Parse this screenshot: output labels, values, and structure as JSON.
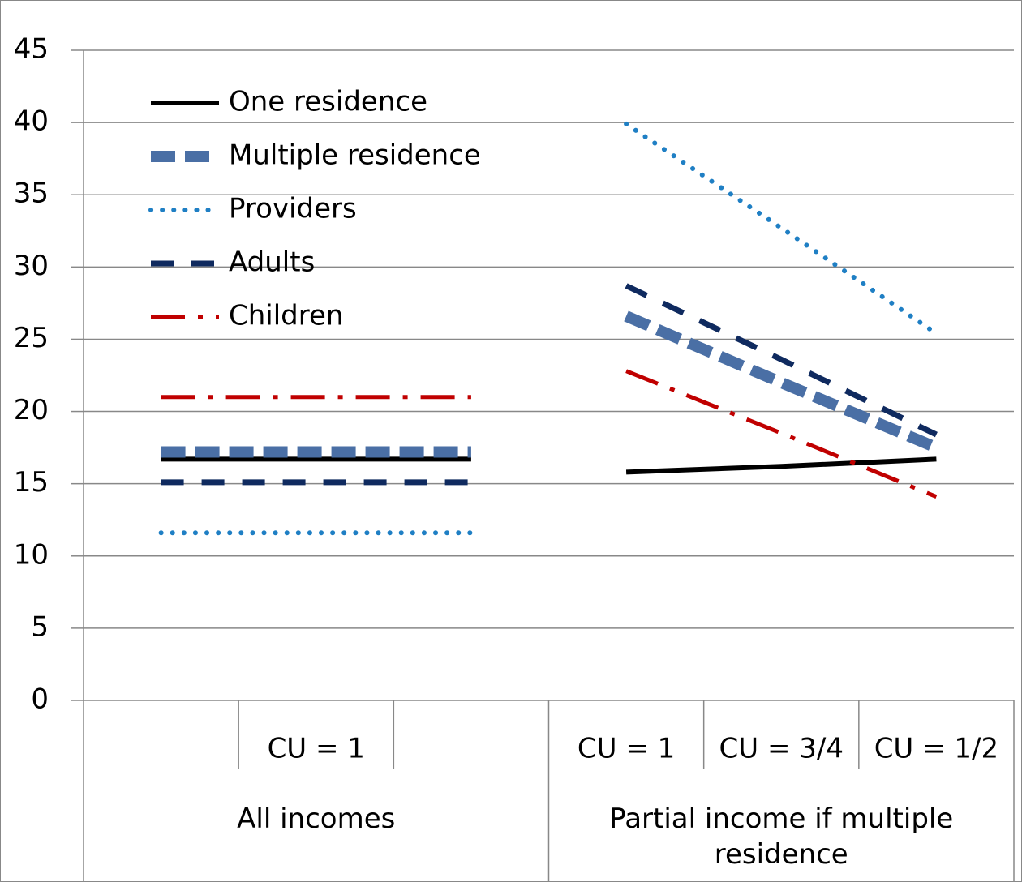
{
  "chart_data": {
    "type": "line",
    "groups": [
      {
        "name": "All incomes",
        "categories": [
          null,
          "CU = 1",
          null
        ]
      },
      {
        "name": "Partial income if multiple residence",
        "categories": [
          "CU = 1",
          "CU = 3/4",
          "CU = 1/2"
        ]
      }
    ],
    "series": [
      {
        "name": "One residence",
        "color": "#000000",
        "values": [
          [
            16.7,
            16.7,
            16.7
          ],
          [
            15.8,
            16.2,
            16.7
          ]
        ]
      },
      {
        "name": "Multiple residence",
        "color": "#4a6fa5",
        "values": [
          [
            17.2,
            17.2,
            17.2
          ],
          [
            26.6,
            22.0,
            17.5
          ]
        ]
      },
      {
        "name": "Providers",
        "color": "#1f7fc4",
        "values": [
          [
            11.6,
            11.6,
            11.6
          ],
          [
            39.9,
            32.7,
            25.4
          ]
        ]
      },
      {
        "name": "Adults",
        "color": "#0f2a5f",
        "values": [
          [
            15.1,
            15.1,
            15.1
          ],
          [
            28.7,
            23.6,
            18.4
          ]
        ]
      },
      {
        "name": "Children",
        "color": "#c00000",
        "values": [
          [
            21.0,
            21.0,
            21.0
          ],
          [
            22.8,
            18.5,
            14.1
          ]
        ]
      }
    ],
    "ylim": [
      0,
      45
    ],
    "yticks": [
      0,
      5,
      10,
      15,
      20,
      25,
      30,
      35,
      40,
      45
    ],
    "grid": true,
    "legend": "upper-left"
  }
}
